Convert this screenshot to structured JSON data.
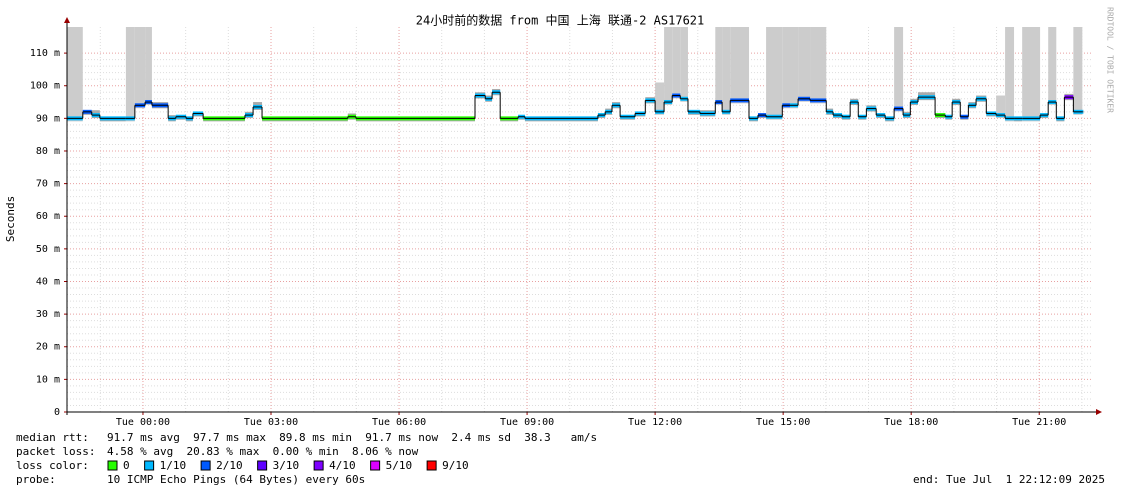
{
  "chart_data": {
    "type": "smokeping",
    "title": "24小时前的数据 from 中国 上海 联通-2 AS17621",
    "y_label": "Seconds",
    "watermark": "RRDTOOL / TOBI OETIKER",
    "xlim": [
      -1.78,
      22.26
    ],
    "xticks": [
      {
        "value": 0,
        "label": "Tue 00:00"
      },
      {
        "value": 3,
        "label": "Tue 03:00"
      },
      {
        "value": 6,
        "label": "Tue 06:00"
      },
      {
        "value": 9,
        "label": "Tue 09:00"
      },
      {
        "value": 12,
        "label": "Tue 12:00"
      },
      {
        "value": 15,
        "label": "Tue 15:00"
      },
      {
        "value": 18,
        "label": "Tue 18:00"
      },
      {
        "value": 21,
        "label": "Tue 21:00"
      }
    ],
    "ylim": [
      0,
      118
    ],
    "yticks": [
      0,
      {
        "value": 10,
        "label": "10 m"
      },
      {
        "value": 20,
        "label": "20 m"
      },
      {
        "value": 30,
        "label": "30 m"
      },
      {
        "value": 40,
        "label": "40 m"
      },
      {
        "value": 50,
        "label": "50 m"
      },
      {
        "value": 60,
        "label": "60 m"
      },
      {
        "value": 70,
        "label": "70 m"
      },
      {
        "value": 80,
        "label": "80 m"
      },
      {
        "value": 90,
        "label": "90 m"
      },
      {
        "value": 100,
        "label": "100 m"
      },
      {
        "value": 110,
        "label": "110 m"
      }
    ],
    "grid": true,
    "x": [
      -1.78,
      -1.41,
      -1.2,
      -1.01,
      -0.4,
      -0.19,
      0.05,
      0.21,
      0.59,
      0.77,
      1.01,
      1.17,
      1.41,
      2.39,
      2.58,
      2.79,
      4.8,
      4.99,
      7.78,
      8.02,
      8.18,
      8.37,
      8.79,
      8.95,
      10.66,
      10.83,
      10.99,
      11.18,
      11.53,
      11.77,
      12.0,
      12.21,
      12.4,
      12.59,
      12.77,
      13.05,
      13.41,
      13.57,
      13.76,
      14.2,
      14.41,
      14.6,
      14.98,
      15.16,
      15.35,
      15.63,
      16.01,
      16.17,
      16.38,
      16.57,
      16.76,
      16.95,
      17.18,
      17.39,
      17.6,
      17.81,
      17.98,
      18.16,
      18.56,
      18.8,
      18.96,
      19.15,
      19.34,
      19.52,
      19.76,
      19.99,
      20.2,
      20.41,
      20.6,
      21.02,
      21.21,
      21.4,
      21.59,
      21.8,
      22.01
    ],
    "values": [
      90,
      92,
      91,
      90,
      90,
      94,
      95,
      94,
      90,
      90.5,
      90,
      91.5,
      90,
      91,
      93.5,
      90,
      90.5,
      90,
      97,
      96,
      98,
      90,
      90.5,
      90,
      91,
      92,
      94,
      90.5,
      91.5,
      95.5,
      92,
      95,
      97,
      96,
      92,
      91.5,
      95,
      92,
      95.5,
      90,
      91,
      90.5,
      94,
      94,
      96,
      95.5,
      92,
      91,
      90.5,
      95,
      90.5,
      93,
      91,
      90,
      93,
      91,
      95,
      96.5,
      91,
      90.5,
      95,
      90.5,
      94,
      96,
      91.5,
      91,
      90,
      90,
      90,
      91,
      95,
      90,
      96.5,
      92,
      92
    ],
    "loss": [
      1,
      2,
      1,
      1,
      1,
      2,
      2,
      2,
      1,
      1,
      1,
      1,
      0,
      1,
      1,
      0,
      0,
      0,
      1,
      1,
      1,
      0,
      1,
      1,
      1,
      1,
      1,
      1,
      1,
      1,
      1,
      1,
      2,
      1,
      1,
      1,
      2,
      1,
      2,
      1,
      2,
      1,
      2,
      1,
      2,
      2,
      1,
      1,
      1,
      1,
      1,
      1,
      1,
      1,
      2,
      1,
      1,
      1,
      0,
      1,
      1,
      2,
      1,
      1,
      1,
      1,
      1,
      1,
      1,
      1,
      1,
      1,
      4,
      1,
      1
    ],
    "smoke_max": [
      118,
      92.5,
      92.5,
      90.5,
      118,
      118,
      118,
      95,
      91,
      91,
      90.5,
      92,
      90.5,
      92,
      95,
      90.5,
      91.5,
      90.5,
      98,
      97,
      99,
      90.5,
      91,
      90.5,
      91.5,
      93,
      95,
      91,
      92,
      96.5,
      101,
      118,
      118,
      118,
      92.5,
      92.5,
      118,
      118,
      118,
      90.5,
      91.5,
      118,
      118,
      118,
      118,
      118,
      93,
      91.5,
      91,
      96,
      91,
      94,
      91.5,
      90.5,
      118,
      92,
      96,
      98,
      91.5,
      91,
      96,
      91,
      95,
      97,
      92,
      97,
      118,
      90.5,
      118,
      91.5,
      118,
      90.5,
      97.5,
      118,
      92.5
    ],
    "legend_label": "loss color:",
    "legend": [
      {
        "name": "0",
        "color": "#26ff00"
      },
      {
        "name": "1/10",
        "color": "#00b8ff"
      },
      {
        "name": "2/10",
        "color": "#0059ff"
      },
      {
        "name": "3/10",
        "color": "#5e00ff"
      },
      {
        "name": "4/10",
        "color": "#7e00ff"
      },
      {
        "name": "5/10",
        "color": "#dd00ff"
      },
      {
        "name": "9/10",
        "color": "#ff0000"
      }
    ],
    "stats": [
      [
        "median rtt:",
        "91.7 ms avg  97.7 ms max  89.8 ms min  91.7 ms now  2.4 ms sd  38.3   am/s"
      ],
      [
        "packet loss:",
        "4.58 % avg  20.83 % max  0.00 % min  8.06 % now"
      ]
    ],
    "probe_label": "probe:",
    "probe": "10 ICMP Echo Pings (64 Bytes) every 60s",
    "end": "end: Tue Jul  1 22:12:09 2025"
  }
}
